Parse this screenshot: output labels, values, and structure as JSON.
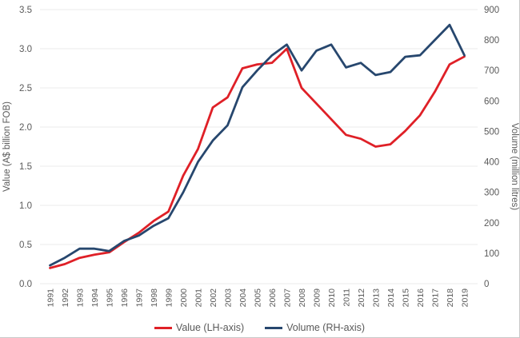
{
  "figure": {
    "background": "#ffffff",
    "text_color": "#595959",
    "gridline_color": "#ebebeb"
  },
  "chart_data": {
    "type": "line",
    "title": "",
    "categories": [
      "1991",
      "1992",
      "1993",
      "1994",
      "1995",
      "1996",
      "1997",
      "1998",
      "1999",
      "2000",
      "2001",
      "2002",
      "2003",
      "2004",
      "2005",
      "2006",
      "2007",
      "2008",
      "2009",
      "2010",
      "2011",
      "2012",
      "2013",
      "2014",
      "2015",
      "2016",
      "2017",
      "2018",
      "2019"
    ],
    "series": [
      {
        "name": "Value (LH-axis)",
        "axis": "left",
        "color": "#df2027",
        "values": [
          0.2,
          0.25,
          0.33,
          0.37,
          0.4,
          0.53,
          0.65,
          0.8,
          0.92,
          1.38,
          1.72,
          2.25,
          2.38,
          2.75,
          2.8,
          2.82,
          3.0,
          2.5,
          2.3,
          2.1,
          1.9,
          1.85,
          1.75,
          1.78,
          1.95,
          2.15,
          2.45,
          2.8,
          2.9
        ]
      },
      {
        "name": "Volume (RH-axis)",
        "axis": "right",
        "color": "#27476e",
        "values": [
          60,
          85,
          115,
          115,
          107,
          140,
          158,
          190,
          215,
          300,
          400,
          470,
          520,
          645,
          700,
          750,
          785,
          700,
          765,
          785,
          710,
          725,
          685,
          695,
          745,
          750,
          800,
          850,
          750
        ]
      }
    ],
    "left_axis": {
      "label": "Value (A$ billion FOB)",
      "min": 0,
      "max": 3.5,
      "tick_labels": [
        "0.0",
        "0.5",
        "1.0",
        "1.5",
        "2.0",
        "2.5",
        "3.0",
        "3.5"
      ]
    },
    "right_axis": {
      "label": "Volume (million litres)",
      "min": 0,
      "max": 900,
      "tick_labels": [
        "0",
        "100",
        "200",
        "300",
        "400",
        "500",
        "600",
        "700",
        "800",
        "900"
      ]
    },
    "grid": "horizontal",
    "legend_position": "bottom"
  },
  "legend": {
    "items": [
      {
        "label": "Value (LH-axis)",
        "color": "#df2027"
      },
      {
        "label": "Volume (RH-axis)",
        "color": "#27476e"
      }
    ]
  }
}
